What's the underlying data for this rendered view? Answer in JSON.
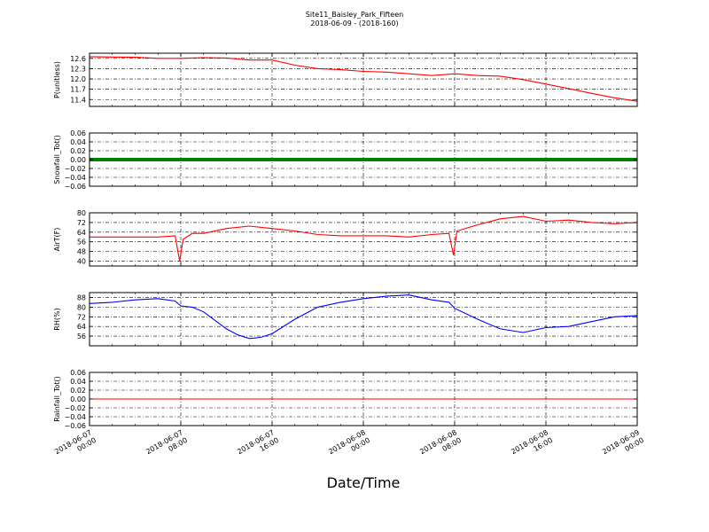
{
  "figure": {
    "title_line1": "Site11_Baisley_Park_Fifteen",
    "title_line2": "2018-06-09 - (2018-160)",
    "xlabel": "Date/Time"
  },
  "chart_data": [
    {
      "type": "line",
      "ylabel": "P(unitless)",
      "color": "#ff0000",
      "ylim": [
        11.2,
        12.75
      ],
      "yticks": [
        "12.6",
        "12.3",
        "12.0",
        "11.7",
        "11.4"
      ],
      "ytick_values": [
        12.6,
        12.3,
        12.0,
        11.7,
        11.4
      ],
      "grid": true,
      "x": [
        0,
        2,
        4,
        6,
        8,
        10,
        12,
        14,
        16,
        18,
        20,
        22,
        24,
        26,
        28,
        30,
        32,
        34,
        36,
        38,
        40,
        42,
        44,
        46,
        48
      ],
      "series": [
        {
          "values": [
            12.65,
            12.64,
            12.63,
            12.6,
            12.6,
            12.62,
            12.61,
            12.55,
            12.55,
            12.4,
            12.3,
            12.27,
            12.22,
            12.2,
            12.15,
            12.1,
            12.15,
            12.1,
            12.08,
            11.98,
            11.85,
            11.72,
            11.58,
            11.45,
            11.35
          ]
        }
      ]
    },
    {
      "type": "line",
      "ylabel": "Snowfall_Tot()",
      "color": "#008000",
      "ylim": [
        -0.06,
        0.06
      ],
      "yticks": [
        "0.06",
        "0.04",
        "0.02",
        "0.00",
        "−0.02",
        "−0.04",
        "−0.06"
      ],
      "ytick_values": [
        0.06,
        0.04,
        0.02,
        0.0,
        -0.02,
        -0.04,
        -0.06
      ],
      "grid": true,
      "x": [
        0,
        48
      ],
      "series": [
        {
          "values": [
            0.0,
            0.0
          ]
        }
      ]
    },
    {
      "type": "line",
      "ylabel": "AirT(F)",
      "color": "#ff0000",
      "ylim": [
        36,
        80
      ],
      "yticks": [
        "80",
        "72",
        "64",
        "56",
        "48",
        "40"
      ],
      "ytick_values": [
        80,
        72,
        64,
        56,
        48,
        40
      ],
      "grid": true,
      "x": [
        0,
        2,
        4,
        6,
        7.5,
        7.9,
        8.2,
        9,
        10,
        12,
        14,
        16,
        18,
        20,
        22,
        24,
        26,
        28,
        30,
        31.5,
        31.9,
        32.2,
        34,
        36,
        38,
        40,
        42,
        44,
        46,
        48
      ],
      "series": [
        {
          "values": [
            60,
            60,
            60,
            60,
            61,
            40,
            58,
            63,
            63,
            67,
            69,
            67,
            65,
            62,
            61,
            61,
            61,
            60,
            62,
            63,
            45,
            65,
            70,
            75,
            77,
            73,
            74,
            72,
            71,
            72
          ]
        }
      ]
    },
    {
      "type": "line",
      "ylabel": "RH(%)",
      "color": "#0000ff",
      "ylim": [
        48,
        92
      ],
      "yticks": [
        "88",
        "80",
        "72",
        "64",
        "56"
      ],
      "ytick_values": [
        88,
        80,
        72,
        64,
        56
      ],
      "grid": true,
      "x": [
        0,
        2,
        4,
        6,
        7.5,
        8,
        9,
        10,
        12,
        13,
        14,
        15,
        16,
        18,
        20,
        22,
        24,
        26,
        28,
        30,
        31.5,
        32,
        34,
        36,
        38,
        40,
        42,
        44,
        46,
        48
      ],
      "series": [
        {
          "values": [
            83,
            84,
            86,
            87,
            85,
            81,
            80,
            76,
            62,
            57,
            54,
            55,
            58,
            70,
            80,
            84,
            87,
            89,
            90,
            86,
            84,
            79,
            70,
            62,
            59,
            63,
            64,
            68,
            72,
            73
          ]
        }
      ]
    },
    {
      "type": "line",
      "ylabel": "Rainfall_Tot()",
      "color": "#ff0000",
      "ylim": [
        -0.06,
        0.06
      ],
      "yticks": [
        "0.06",
        "0.04",
        "0.02",
        "0.00",
        "−0.02",
        "−0.04",
        "−0.06"
      ],
      "ytick_values": [
        0.06,
        0.04,
        0.02,
        0.0,
        -0.02,
        -0.04,
        -0.06
      ],
      "grid": true,
      "x": [
        0,
        48
      ],
      "series": [
        {
          "values": [
            0.0,
            0.0
          ]
        }
      ]
    }
  ],
  "xaxis": {
    "xlim": [
      0,
      48
    ],
    "tick_values": [
      0,
      8,
      16,
      24,
      32,
      40,
      48
    ],
    "tick_labels": [
      [
        "2018-06-07",
        "00:00"
      ],
      [
        "2018-06-07",
        "08:00"
      ],
      [
        "2018-06-07",
        "16:00"
      ],
      [
        "2018-06-08",
        "00:00"
      ],
      [
        "2018-06-08",
        "08:00"
      ],
      [
        "2018-06-08",
        "16:00"
      ],
      [
        "2018-06-09",
        "00:00"
      ]
    ]
  }
}
